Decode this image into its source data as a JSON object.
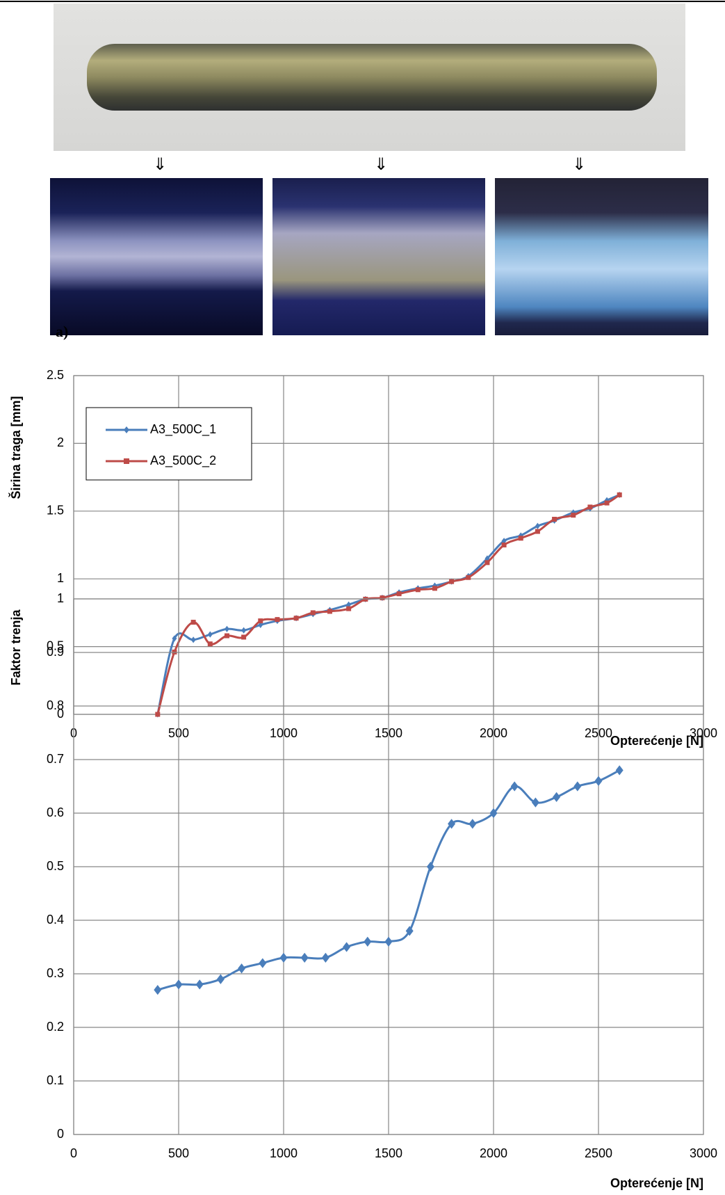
{
  "panel_label": "a)",
  "chart_data": [
    {
      "type": "line",
      "title": null,
      "x_label": "Opterećenje [N]",
      "y_label": "Širina traga [mm]",
      "x": [
        400,
        480,
        570,
        650,
        730,
        810,
        890,
        970,
        1060,
        1140,
        1220,
        1310,
        1390,
        1470,
        1550,
        1640,
        1720,
        1800,
        1880,
        1970,
        2050,
        2130,
        2210,
        2290,
        2380,
        2460,
        2540,
        2600
      ],
      "series": [
        {
          "name": "A3_500C_1",
          "color": "#4a7ebb",
          "marker": "diamond",
          "values": [
            0,
            0.56,
            0.55,
            0.59,
            0.63,
            0.62,
            0.66,
            0.69,
            0.71,
            0.74,
            0.77,
            0.81,
            0.85,
            0.86,
            0.9,
            0.93,
            0.95,
            0.98,
            1.02,
            1.15,
            1.28,
            1.32,
            1.39,
            1.43,
            1.49,
            1.52,
            1.58,
            1.62
          ]
        },
        {
          "name": "A3_500C_2",
          "color": "#be4b48",
          "marker": "square",
          "values": [
            0,
            0.46,
            0.68,
            0.52,
            0.58,
            0.57,
            0.69,
            0.7,
            0.71,
            0.75,
            0.76,
            0.78,
            0.85,
            0.86,
            0.89,
            0.92,
            0.93,
            0.98,
            1.01,
            1.12,
            1.25,
            1.3,
            1.35,
            1.44,
            1.47,
            1.53,
            1.56,
            1.62
          ]
        }
      ],
      "xlim": [
        0,
        3000
      ],
      "xticks": [
        0,
        500,
        1000,
        1500,
        2000,
        2500,
        3000
      ],
      "ylim": [
        0,
        2.5
      ],
      "yticks": [
        0,
        0.5,
        1,
        1.5,
        2,
        2.5
      ],
      "grid": true,
      "smooth": true,
      "legend": "upper left"
    },
    {
      "type": "line",
      "x_label": "Opterećenje [N]",
      "y_label": "Faktor trenja",
      "x": [
        400,
        500,
        600,
        700,
        800,
        900,
        1000,
        1100,
        1200,
        1300,
        1400,
        1500,
        1600,
        1700,
        1800,
        1900,
        2000,
        2100,
        2200,
        2300,
        2400,
        2500,
        2600
      ],
      "values": [
        0.27,
        0.28,
        0.28,
        0.29,
        0.31,
        0.32,
        0.33,
        0.33,
        0.33,
        0.35,
        0.36,
        0.36,
        0.38,
        0.5,
        0.58,
        0.58,
        0.6,
        0.65,
        0.62,
        0.63,
        0.65,
        0.66,
        0.68
      ],
      "color": "#4a7ebb",
      "marker": "diamond",
      "xlim": [
        0,
        3000
      ],
      "xticks": [
        0,
        500,
        1000,
        1500,
        2000,
        2500,
        3000
      ],
      "ylim": [
        0,
        1
      ],
      "yticks": [
        0,
        0.1,
        0.2,
        0.3,
        0.4,
        0.5,
        0.6,
        0.7,
        0.8,
        0.9,
        1
      ],
      "grid": true,
      "smooth": true
    }
  ]
}
